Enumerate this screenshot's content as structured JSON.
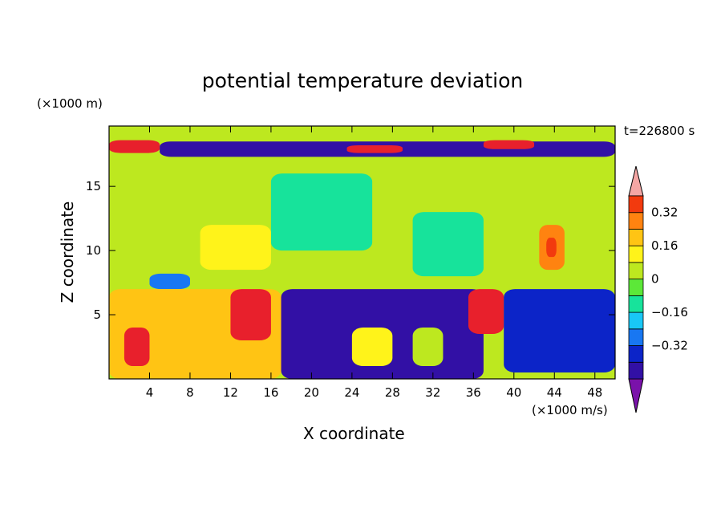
{
  "chart_data": {
    "type": "heatmap",
    "title": "potential temperature deviation",
    "xlabel": "X coordinate",
    "ylabel": "Z coordinate",
    "x_units": "(×1000 m/s)",
    "y_units": "(×1000 m)",
    "time_label": "t=226800 s",
    "xlim": [
      0,
      50
    ],
    "ylim": [
      0,
      19.7
    ],
    "x_ticks": [
      "4",
      "8",
      "12",
      "16",
      "20",
      "24",
      "28",
      "32",
      "36",
      "40",
      "44",
      "48"
    ],
    "y_ticks": [
      "5",
      "10",
      "15"
    ],
    "colorbar": {
      "levels": [
        -0.48,
        -0.4,
        -0.32,
        -0.24,
        -0.16,
        -0.08,
        0,
        0.08,
        0.16,
        0.24,
        0.32,
        0.4
      ],
      "tick_labels": [
        "0.32",
        "0.16",
        "0",
        "−0.16",
        "−0.32"
      ],
      "colors": [
        "#7a12aa",
        "#3210a5",
        "#0c24c8",
        "#1877f2",
        "#19c7f6",
        "#17e39b",
        "#5ce838",
        "#bde81f",
        "#fff31a",
        "#ffc414",
        "#ff8310",
        "#f23a0e",
        "#e8202c",
        "#f4a6a4"
      ]
    },
    "regions": [
      {
        "x": [
          0,
          50
        ],
        "y": [
          0,
          19.7
        ],
        "level": 0.0
      },
      {
        "x": [
          0,
          50
        ],
        "y": [
          18.7,
          19.7
        ],
        "level": 0.04
      },
      {
        "x": [
          5,
          50
        ],
        "y": [
          17.3,
          18.5
        ],
        "level": -0.45
      },
      {
        "x": [
          0,
          5
        ],
        "y": [
          17.6,
          18.6
        ],
        "level": 0.45
      },
      {
        "x": [
          23.5,
          29
        ],
        "y": [
          17.6,
          18.2
        ],
        "level": 0.45
      },
      {
        "x": [
          37,
          42
        ],
        "y": [
          17.9,
          18.6
        ],
        "level": 0.45
      },
      {
        "x": [
          16,
          26
        ],
        "y": [
          10,
          16
        ],
        "level": -0.1
      },
      {
        "x": [
          30,
          37
        ],
        "y": [
          8,
          13
        ],
        "level": -0.1
      },
      {
        "x": [
          9,
          16
        ],
        "y": [
          8.5,
          12
        ],
        "level": 0.12
      },
      {
        "x": [
          42.5,
          45
        ],
        "y": [
          8.5,
          12
        ],
        "level": 0.3
      },
      {
        "x": [
          43.2,
          44.2
        ],
        "y": [
          9.5,
          11
        ],
        "level": 0.38
      },
      {
        "x": [
          4,
          8
        ],
        "y": [
          7,
          8.2
        ],
        "level": -0.3
      },
      {
        "x": [
          0,
          17
        ],
        "y": [
          0,
          7
        ],
        "level": 0.2
      },
      {
        "x": [
          1.5,
          4
        ],
        "y": [
          1,
          4
        ],
        "level": 0.45
      },
      {
        "x": [
          12,
          16
        ],
        "y": [
          3,
          7
        ],
        "level": 0.45
      },
      {
        "x": [
          17,
          37
        ],
        "y": [
          0,
          7
        ],
        "level": -0.45
      },
      {
        "x": [
          35.5,
          39
        ],
        "y": [
          3.5,
          7
        ],
        "level": 0.45
      },
      {
        "x": [
          39,
          50
        ],
        "y": [
          0.5,
          7
        ],
        "level": -0.4
      },
      {
        "x": [
          24,
          28
        ],
        "y": [
          1,
          4
        ],
        "level": 0.1
      },
      {
        "x": [
          30,
          33
        ],
        "y": [
          1,
          4
        ],
        "level": 0.05
      }
    ]
  }
}
